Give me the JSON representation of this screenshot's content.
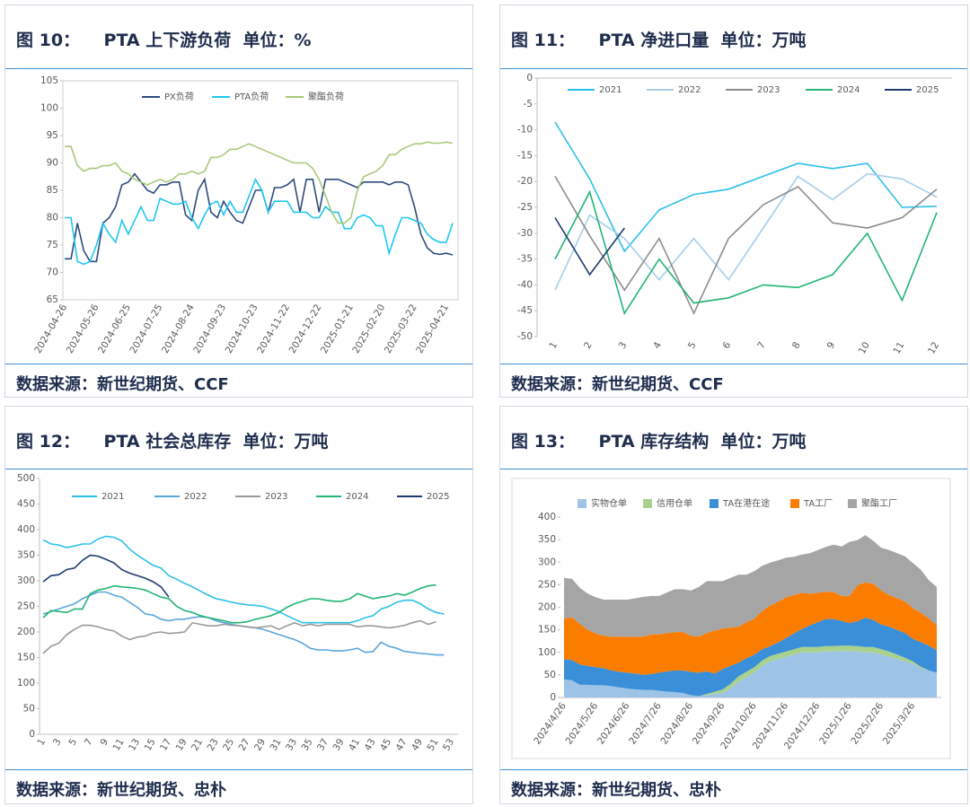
{
  "chart_data": [
    {
      "type": "line",
      "title": "图 10：    PTA 上下游负荷  单位：%",
      "source": "数据来源：新世纪期货、CCF",
      "categories": [
        "2024-04-26",
        null,
        null,
        null,
        null,
        "2024-05-26",
        null,
        null,
        null,
        null,
        "2024-06-25",
        null,
        null,
        null,
        null,
        "2024-07-25",
        null,
        null,
        null,
        null,
        "2024-08-24",
        null,
        null,
        null,
        null,
        "2024-09-23",
        null,
        null,
        null,
        null,
        "2024-10-23",
        null,
        null,
        null,
        null,
        "2024-11-22",
        null,
        null,
        null,
        null,
        "2024-12-22",
        null,
        null,
        null,
        null,
        "2025-01-21",
        null,
        null,
        null,
        null,
        "2025-02-20",
        null,
        null,
        null,
        null,
        "2025-03-22",
        null,
        null,
        null,
        null,
        "2025-04-21",
        null
      ],
      "ylim": [
        65,
        105
      ],
      "yticks": [
        65,
        70,
        75,
        80,
        85,
        90,
        95,
        100,
        105
      ],
      "series": [
        {
          "name": "PX负荷",
          "color": "#2f4b7c",
          "values": [
            72.5,
            72.5,
            79,
            74,
            72,
            72,
            79,
            80,
            82,
            86,
            86.5,
            88,
            86.5,
            85,
            84.5,
            86,
            86,
            86.5,
            86.5,
            80.5,
            79.5,
            85,
            87,
            81,
            80,
            83,
            81,
            79.5,
            79,
            82,
            85,
            85,
            81,
            85.5,
            85.5,
            86,
            87,
            81,
            87,
            87,
            81,
            87,
            87,
            87,
            86.5,
            86,
            85.5,
            86.5,
            86.5,
            86.5,
            86.5,
            86,
            86.5,
            86.5,
            86,
            82,
            77,
            74.5,
            73.5,
            73.3,
            73.5,
            73.2
          ]
        },
        {
          "name": "PTA负荷",
          "color": "#1ec8f0",
          "values": [
            80,
            80,
            72,
            71.5,
            72,
            75,
            79,
            77,
            75.5,
            79.5,
            77,
            79.5,
            82,
            79.5,
            79.5,
            83.5,
            83,
            82.5,
            82.5,
            83,
            80,
            78,
            80.5,
            82.5,
            83,
            80.5,
            83,
            81,
            81,
            84,
            87,
            85,
            81,
            83,
            83,
            83,
            81,
            81,
            81,
            80,
            80,
            82,
            81,
            81,
            78,
            78,
            80,
            80.5,
            80,
            78.5,
            78.5,
            73.5,
            77,
            80,
            80,
            79.5,
            79,
            77,
            76,
            75.5,
            75.5,
            79
          ]
        },
        {
          "name": "聚酯负荷",
          "color": "#a9c97a",
          "values": [
            93,
            93,
            89.5,
            88.5,
            89,
            89,
            89.5,
            89.5,
            90,
            88.5,
            88,
            87,
            86.5,
            86,
            86.5,
            87,
            86.5,
            87,
            88,
            88,
            88.5,
            88,
            88.5,
            91,
            91,
            91.5,
            92.5,
            92.5,
            93,
            93.5,
            93,
            92.5,
            92,
            91.5,
            91,
            90.5,
            90,
            90,
            90,
            89,
            87,
            84,
            81,
            79,
            79,
            80,
            85,
            87.5,
            88,
            88.5,
            89.5,
            91.5,
            91.5,
            92.5,
            93,
            93.5,
            93.5,
            93.8,
            93.6,
            93.6,
            93.8,
            93.6
          ]
        }
      ]
    },
    {
      "type": "line",
      "title": "图 11：    PTA 净进口量  单位：万吨",
      "source": "数据来源：新世纪期货、CCF",
      "categories": [
        "1",
        "2",
        "3",
        "4",
        "5",
        "6",
        "7",
        "8",
        "9",
        "10",
        "11",
        "12"
      ],
      "ylim": [
        -50,
        0
      ],
      "yticks": [
        -50,
        -45,
        -40,
        -35,
        -30,
        -25,
        -20,
        -15,
        -10,
        -5,
        0
      ],
      "series": [
        {
          "name": "2021",
          "color": "#2bc0ea",
          "values": [
            -8.5,
            -19.5,
            -33.5,
            -25.5,
            -22.5,
            -21.5,
            -19,
            -16.5,
            -17.5,
            -16.5,
            -25,
            -24.8
          ]
        },
        {
          "name": "2022",
          "color": "#a6cdea",
          "values": [
            -41,
            -26.5,
            -31,
            -39,
            -31,
            -39,
            -29,
            -19,
            -23.5,
            -18.5,
            -19.5,
            -23
          ]
        },
        {
          "name": "2023",
          "color": "#8c8c8c",
          "values": [
            -19,
            -30.5,
            -41,
            -31,
            -45.5,
            -31,
            -24.5,
            -21,
            -28,
            -29,
            -27,
            -21.5
          ]
        },
        {
          "name": "2024",
          "color": "#22b573",
          "values": [
            -35,
            -22,
            -45.5,
            -35,
            -43.5,
            -42.5,
            -40,
            -40.5,
            -38,
            -30,
            -43,
            -26
          ]
        },
        {
          "name": "2025",
          "color": "#1f3a6e",
          "values": [
            -27,
            -38,
            -29,
            null,
            null,
            null,
            null,
            null,
            null,
            null,
            null,
            null
          ]
        }
      ]
    },
    {
      "type": "line",
      "title": "图 12：    PTA 社会总库存  单位：万吨",
      "source": "数据来源：新世纪期货、忠朴",
      "categories": [
        "1",
        null,
        "3",
        null,
        "5",
        null,
        "7",
        null,
        "9",
        null,
        "11",
        null,
        "13",
        null,
        "15",
        null,
        "17",
        null,
        "19",
        null,
        "21",
        null,
        "23",
        null,
        "25",
        null,
        "27",
        null,
        "29",
        null,
        "31",
        null,
        "33",
        null,
        "35",
        null,
        "37",
        null,
        "39",
        null,
        "41",
        null,
        "43",
        null,
        "45",
        null,
        "47",
        null,
        "49",
        null,
        "51",
        null,
        "53"
      ],
      "ylim": [
        0,
        500
      ],
      "yticks": [
        0,
        50,
        100,
        150,
        200,
        250,
        300,
        350,
        400,
        450,
        500
      ],
      "series": [
        {
          "name": "2021",
          "color": "#2bc0ea",
          "values": [
            380,
            372,
            370,
            365,
            368,
            372,
            372,
            382,
            387,
            385,
            378,
            362,
            350,
            340,
            330,
            325,
            310,
            303,
            295,
            288,
            280,
            272,
            265,
            262,
            258,
            255,
            253,
            252,
            250,
            245,
            240,
            232,
            225,
            218,
            218,
            218,
            218,
            218,
            218,
            218,
            222,
            228,
            232,
            245,
            250,
            258,
            262,
            262,
            255,
            245,
            238,
            235,
            null
          ]
        },
        {
          "name": "2022",
          "color": "#5aa5dc",
          "values": [
            235,
            240,
            245,
            250,
            255,
            265,
            272,
            278,
            278,
            272,
            268,
            258,
            248,
            235,
            233,
            225,
            222,
            225,
            225,
            228,
            230,
            228,
            222,
            218,
            215,
            212,
            210,
            208,
            205,
            200,
            195,
            190,
            185,
            178,
            168,
            165,
            165,
            163,
            163,
            165,
            168,
            160,
            162,
            180,
            172,
            168,
            162,
            160,
            158,
            157,
            155,
            155,
            null
          ]
        },
        {
          "name": "2023",
          "color": "#9a9a9a",
          "values": [
            158,
            172,
            178,
            195,
            205,
            213,
            213,
            210,
            205,
            202,
            192,
            185,
            190,
            192,
            198,
            200,
            197,
            198,
            200,
            218,
            215,
            212,
            212,
            215,
            213,
            212,
            210,
            208,
            210,
            212,
            205,
            212,
            218,
            212,
            215,
            212,
            215,
            215,
            215,
            215,
            210,
            212,
            212,
            210,
            208,
            210,
            213,
            218,
            222,
            215,
            220,
            null,
            null
          ]
        },
        {
          "name": "2024",
          "color": "#22b573",
          "values": [
            228,
            242,
            240,
            238,
            245,
            245,
            275,
            282,
            285,
            290,
            288,
            287,
            285,
            282,
            275,
            268,
            265,
            250,
            242,
            238,
            232,
            228,
            225,
            222,
            218,
            218,
            220,
            225,
            228,
            232,
            238,
            248,
            255,
            260,
            265,
            265,
            262,
            260,
            260,
            265,
            275,
            270,
            265,
            268,
            270,
            275,
            272,
            278,
            285,
            290,
            292,
            null,
            null
          ]
        },
        {
          "name": "2025",
          "color": "#1f3a6e",
          "values": [
            298,
            310,
            312,
            322,
            325,
            340,
            350,
            348,
            342,
            335,
            322,
            315,
            310,
            305,
            298,
            288,
            268,
            null,
            null,
            null,
            null,
            null,
            null,
            null,
            null,
            null,
            null,
            null,
            null,
            null,
            null,
            null,
            null,
            null,
            null,
            null,
            null,
            null,
            null,
            null,
            null,
            null,
            null,
            null,
            null,
            null,
            null,
            null,
            null,
            null,
            null,
            null,
            null
          ]
        }
      ]
    },
    {
      "type": "stacked_area",
      "title": "图 13：    PTA 库存结构  单位：万吨",
      "source": "数据来源：新世纪期货、忠朴",
      "categories": [
        "2024/4/26",
        null,
        null,
        null,
        "2024/5/26",
        null,
        null,
        null,
        "2024/6/26",
        null,
        null,
        null,
        "2024/7/26",
        null,
        null,
        null,
        "2024/8/26",
        null,
        null,
        null,
        "2024/9/26",
        null,
        null,
        null,
        "2024/10/26",
        null,
        null,
        null,
        "2024/11/26",
        null,
        null,
        null,
        "2024/12/26",
        null,
        null,
        null,
        "2025/1/26",
        null,
        null,
        null,
        "2025/2/26",
        null,
        null,
        null,
        "2025/3/26",
        null,
        null,
        null
      ],
      "ylim": [
        0,
        400
      ],
      "yticks": [
        0,
        50,
        100,
        150,
        200,
        250,
        300,
        350,
        400
      ],
      "series": [
        {
          "name": "实物仓单",
          "color": "#9dc3e6",
          "values": [
            40,
            38,
            28,
            28,
            27,
            27,
            25,
            22,
            20,
            18,
            17,
            17,
            15,
            13,
            12,
            10,
            5,
            3,
            5,
            8,
            10,
            20,
            35,
            45,
            55,
            70,
            80,
            85,
            90,
            95,
            100,
            100,
            100,
            102,
            102,
            103,
            103,
            102,
            100,
            100,
            95,
            90,
            85,
            80,
            75,
            65,
            60,
            55
          ]
        },
        {
          "name": "信用仓单",
          "color": "#a9d18e",
          "values": [
            0,
            0,
            0,
            0,
            0,
            0,
            0,
            0,
            0,
            0,
            0,
            0,
            0,
            0,
            0,
            0,
            0,
            0,
            3,
            5,
            8,
            10,
            12,
            12,
            12,
            12,
            12,
            12,
            12,
            12,
            12,
            12,
            12,
            12,
            12,
            12,
            12,
            12,
            12,
            12,
            12,
            12,
            10,
            8,
            5,
            3,
            0,
            0
          ]
        },
        {
          "name": "TA在港在途",
          "color": "#3a8fd8",
          "values": [
            45,
            45,
            45,
            42,
            40,
            38,
            35,
            35,
            35,
            35,
            33,
            35,
            40,
            45,
            48,
            50,
            52,
            52,
            50,
            40,
            45,
            40,
            30,
            30,
            28,
            25,
            22,
            25,
            30,
            35,
            40,
            48,
            55,
            60,
            60,
            55,
            50,
            55,
            65,
            60,
            55,
            55,
            55,
            55,
            50,
            55,
            55,
            50
          ]
        },
        {
          "name": "TA工厂",
          "color": "#fa7d00",
          "values": [
            90,
            95,
            90,
            80,
            75,
            72,
            75,
            78,
            80,
            82,
            85,
            88,
            85,
            85,
            85,
            85,
            80,
            80,
            85,
            95,
            90,
            85,
            80,
            80,
            80,
            85,
            90,
            90,
            90,
            85,
            80,
            70,
            65,
            60,
            60,
            55,
            60,
            80,
            78,
            80,
            75,
            70,
            70,
            70,
            68,
            65,
            60,
            55
          ]
        },
        {
          "name": "聚酯工厂",
          "color": "#a5a5a5",
          "values": [
            90,
            85,
            80,
            80,
            80,
            80,
            82,
            82,
            82,
            85,
            88,
            85,
            85,
            90,
            95,
            95,
            100,
            110,
            115,
            110,
            105,
            110,
            115,
            105,
            105,
            100,
            95,
            92,
            88,
            85,
            85,
            90,
            95,
            100,
            105,
            110,
            120,
            100,
            105,
            95,
            95,
            100,
            100,
            100,
            100,
            95,
            85,
            85
          ]
        }
      ]
    }
  ]
}
